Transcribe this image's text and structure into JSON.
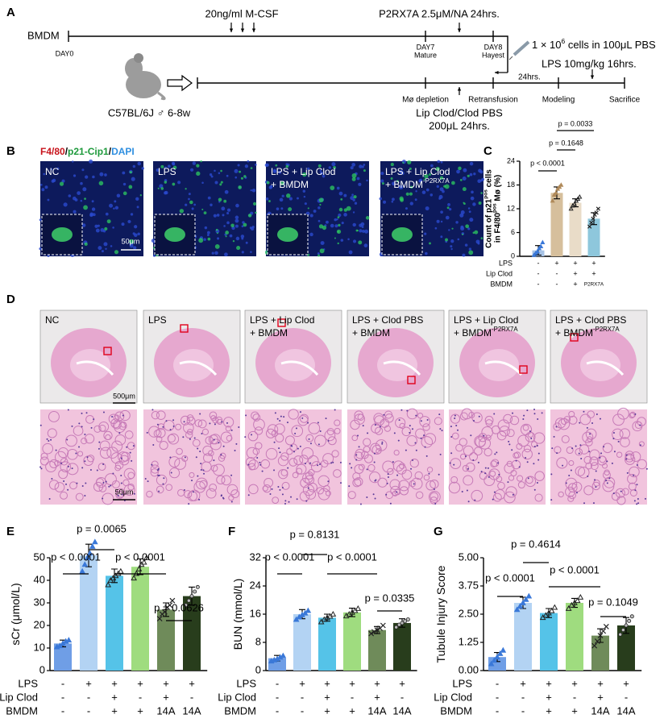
{
  "panel_a": {
    "letter": "A",
    "bmdm": "BMDM",
    "day0": "DAY0",
    "mcsf": "20ng/ml M-CSF",
    "p2rx7a": "P2RX7A 2.5μM/NA 24hrs.",
    "day7": [
      "DAY7",
      "Mature"
    ],
    "day8": [
      "DAY8",
      "Hayest"
    ],
    "cells": [
      "1 × 10",
      "6",
      " cells in 100μL PBS"
    ],
    "lps": "LPS 10mg/kg 16hrs.",
    "hrs24": "24hrs.",
    "mouse": "C57BL/6J ♂ 6-8w",
    "depletion": "Mø depletion",
    "retransfusion": "Retransfusion",
    "modeling": "Modeling",
    "sacrifice": "Sacrifice",
    "clod": [
      "Lip Clod/Clod PBS",
      "200μL 24hrs."
    ]
  },
  "panel_b": {
    "letter": "B",
    "legend": [
      {
        "text": "F4/80",
        "color": "#c8141c"
      },
      {
        "text": "/",
        "color": "#000000"
      },
      {
        "text": "p21-Cip1",
        "color": "#1e9a3c"
      },
      {
        "text": "/",
        "color": "#000000"
      },
      {
        "text": "DAPI",
        "color": "#2f8fe0"
      }
    ],
    "images": [
      {
        "label": [
          "NC"
        ]
      },
      {
        "label": [
          "LPS"
        ]
      },
      {
        "label": [
          "LPS + Lip Clod",
          "+ BMDM"
        ]
      },
      {
        "label": [
          "LPS + Lip Clod",
          "+ BMDM"
        ],
        "sup": "-P2RX7A"
      }
    ],
    "scale": "50μm"
  },
  "panel_d": {
    "letter": "D",
    "images": [
      {
        "label": [
          "NC"
        ]
      },
      {
        "label": [
          "LPS"
        ]
      },
      {
        "label": [
          "LPS + Lip Clod",
          "+ BMDM"
        ]
      },
      {
        "label": [
          "LPS + Clod PBS",
          "+ BMDM"
        ]
      },
      {
        "label": [
          "LPS + Lip Clod",
          "+ BMDM"
        ],
        "sup": "-P2RX7A"
      },
      {
        "label": [
          "LPS + Clod PBS",
          "+ BMDM"
        ],
        "sup": "-P2RX7A"
      }
    ],
    "scale_top": "500μm",
    "scale_bottom": "50μm"
  },
  "chart_data": [
    {
      "type": "bar",
      "letter": "C",
      "ylabel": [
        [
          "Count of p21",
          "pos",
          " cells"
        ],
        [
          "in F4/80",
          "pos",
          " Mø (%)"
        ]
      ],
      "ylim": [
        0,
        24
      ],
      "yticks": [
        0,
        6,
        12,
        18,
        24
      ],
      "values": [
        1.5,
        16,
        13.5,
        9.5
      ],
      "errors": [
        1.2,
        1.5,
        1,
        1.5
      ],
      "points": [
        [
          0.3,
          0.8,
          1.2,
          2,
          2.5,
          3.5
        ],
        [
          14,
          15.5,
          16,
          17,
          17.5,
          18
        ],
        [
          12,
          12.8,
          13.2,
          14,
          14.5,
          15
        ],
        [
          7.5,
          8.5,
          9.5,
          10.5,
          11,
          12
        ]
      ],
      "colors": [
        "#a7c3e6",
        "#d6bf9c",
        "#e9dcc8",
        "#8ec7dc"
      ],
      "pvalues": [
        "p < 0.0001",
        "p = 0.1648",
        "p = 0.0033"
      ],
      "rows": [
        {
          "label": "LPS",
          "cells": [
            "-",
            "+",
            "+",
            "+"
          ]
        },
        {
          "label": "Lip Clod",
          "cells": [
            "-",
            "-",
            "+",
            "+"
          ]
        },
        {
          "label": "BMDM",
          "cells": [
            "-",
            "-",
            "+",
            "P2RX7A"
          ]
        }
      ]
    },
    {
      "type": "bar",
      "letter": "E",
      "ylabel": [
        [
          "sCr (μmol/L)"
        ]
      ],
      "ylim": [
        0,
        50
      ],
      "yticks": [
        0,
        10,
        20,
        30,
        40,
        50
      ],
      "values": [
        12,
        51,
        42,
        46,
        27,
        33
      ],
      "errors": [
        1.5,
        5,
        3,
        3.5,
        3,
        4
      ],
      "points": [
        [
          10.5,
          11,
          12,
          13,
          13.5
        ],
        [
          44,
          47,
          50,
          52,
          55,
          57
        ],
        [
          38,
          40,
          41,
          42,
          43,
          44
        ],
        [
          41,
          43,
          45,
          47,
          48,
          50
        ],
        [
          23,
          25,
          26,
          28,
          29,
          31
        ],
        [
          29,
          31,
          33,
          35,
          37
        ]
      ],
      "colors": [
        "#6f9ee6",
        "#b3d3f3",
        "#55c3e8",
        "#9fdc7f",
        "#6f8b5a",
        "#283d1c"
      ],
      "pvalues": [
        "p < 0.0001",
        "p = 0.0065",
        "p < 0.0001",
        "p = 0.0626"
      ],
      "rows": [
        {
          "label": "LPS",
          "cells": [
            "-",
            "+",
            "+",
            "+",
            "+",
            "+"
          ]
        },
        {
          "label": "Lip Clod",
          "cells": [
            "-",
            "-",
            "+",
            "-",
            "+",
            "-"
          ]
        },
        {
          "label": "BMDM",
          "cells": [
            "-",
            "-",
            "+",
            "+",
            "14A",
            "14A"
          ]
        }
      ]
    },
    {
      "type": "bar",
      "letter": "F",
      "ylabel": [
        [
          "BUN (mmol/L)"
        ]
      ],
      "ylim": [
        0,
        32
      ],
      "yticks": [
        0,
        8,
        16,
        24,
        32
      ],
      "values": [
        3.5,
        16,
        15,
        16.5,
        11.5,
        13.5
      ],
      "errors": [
        0.8,
        1.3,
        1,
        1.2,
        1,
        1.2
      ],
      "points": [
        [
          2.7,
          3,
          3.3,
          3.8,
          4.2
        ],
        [
          14.5,
          15.2,
          15.8,
          16.3,
          17
        ],
        [
          13.8,
          14.5,
          15,
          15.4,
          16
        ],
        [
          15.5,
          16,
          16.5,
          17,
          17.6
        ],
        [
          10.5,
          11,
          11.5,
          12,
          12.8
        ],
        [
          12.3,
          13,
          13.5,
          14,
          14.5
        ]
      ],
      "colors": [
        "#6f9ee6",
        "#b3d3f3",
        "#55c3e8",
        "#9fdc7f",
        "#6f8b5a",
        "#283d1c"
      ],
      "pvalues": [
        "p < 0.0001",
        "p = 0.8131",
        "p < 0.0001",
        "p = 0.0335"
      ],
      "rows": [
        {
          "label": "LPS",
          "cells": [
            "-",
            "+",
            "+",
            "+",
            "+",
            "+"
          ]
        },
        {
          "label": "Lip Clod",
          "cells": [
            "-",
            "-",
            "+",
            "-",
            "+",
            "-"
          ]
        },
        {
          "label": "BMDM",
          "cells": [
            "-",
            "-",
            "+",
            "+",
            "14A",
            "14A"
          ]
        }
      ]
    },
    {
      "type": "bar",
      "letter": "G",
      "ylabel": [
        [
          "Tubule Injury Score"
        ]
      ],
      "ylim": [
        0,
        5
      ],
      "yticks": [
        {
          "value": 0,
          "label": "0.00"
        },
        1.25,
        {
          "value": 2.5,
          "label": "2.50"
        },
        3.75,
        {
          "value": 5,
          "label": "5.00"
        }
      ],
      "values": [
        0.6,
        3.0,
        2.55,
        3.0,
        1.55,
        2.0
      ],
      "errors": [
        0.2,
        0.25,
        0.2,
        0.2,
        0.3,
        0.35
      ],
      "points": [
        [
          0.3,
          0.45,
          0.6,
          0.75,
          0.9
        ],
        [
          2.7,
          2.85,
          3.0,
          3.15,
          3.3
        ],
        [
          2.35,
          2.45,
          2.55,
          2.65,
          2.8
        ],
        [
          2.75,
          2.9,
          3.0,
          3.1,
          3.25
        ],
        [
          1.1,
          1.3,
          1.55,
          1.75,
          1.95
        ],
        [
          1.6,
          1.8,
          2.0,
          2.2,
          2.4
        ]
      ],
      "colors": [
        "#6f9ee6",
        "#b3d3f3",
        "#55c3e8",
        "#9fdc7f",
        "#6f8b5a",
        "#283d1c"
      ],
      "pvalues": [
        "p < 0.0001",
        "p = 0.4614",
        "p < 0.0001",
        "p = 0.1049"
      ],
      "rows": [
        {
          "label": "LPS",
          "cells": [
            "-",
            "+",
            "+",
            "+",
            "+",
            "+"
          ]
        },
        {
          "label": "Lip Clod",
          "cells": [
            "-",
            "-",
            "+",
            "-",
            "+",
            "-"
          ]
        },
        {
          "label": "BMDM",
          "cells": [
            "-",
            "-",
            "+",
            "+",
            "14A",
            "14A"
          ]
        }
      ]
    }
  ]
}
